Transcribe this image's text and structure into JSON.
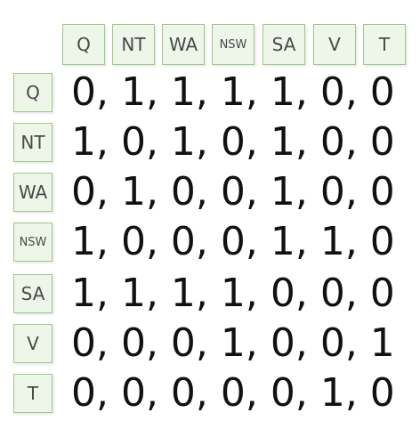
{
  "matrix": {
    "column_labels": [
      "Q",
      "NT",
      "WA",
      "NSW",
      "SA",
      "V",
      "T"
    ],
    "row_labels": [
      "Q",
      "NT",
      "WA",
      "NSW",
      "SA",
      "V",
      "T"
    ],
    "rows": [
      "0, 1, 1, 1, 1, 0, 0",
      "1, 0, 1, 0, 1, 0, 0",
      "0, 1, 0, 0, 1, 0, 0",
      "1, 0, 0, 0, 1, 1, 0",
      "1, 1, 1, 1, 0, 0, 0",
      "0, 0, 0, 1, 0, 0, 1",
      "0, 0, 0, 0, 0, 1, 0"
    ]
  }
}
